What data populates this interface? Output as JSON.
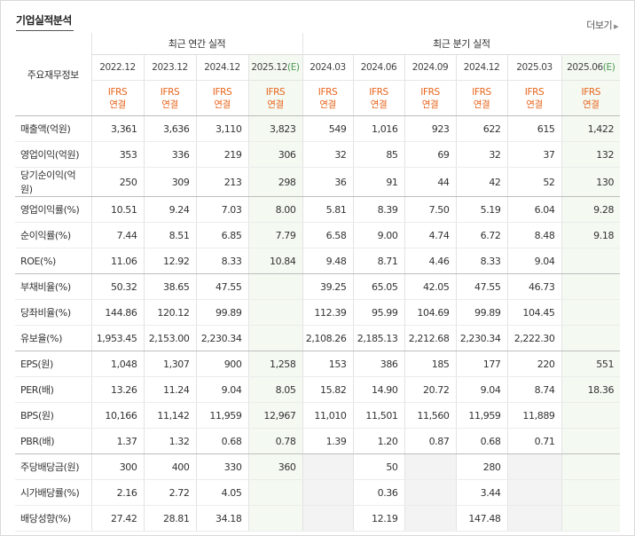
{
  "header": {
    "title": "기업실적분석",
    "more_label": "더보기"
  },
  "table": {
    "corner_label": "주요재무정보",
    "annual_group_label": "최근 연간 실적",
    "quarter_group_label": "최근 분기 실적",
    "periods": [
      "2022.12",
      "2023.12",
      "2024.12",
      "2025.12",
      "2024.03",
      "2024.06",
      "2024.09",
      "2024.12",
      "2025.03",
      "2025.06"
    ],
    "estimate_mark": "(E)",
    "estimate_columns": [
      3,
      9
    ],
    "standard_label": "IFRS",
    "basis_label": "연결",
    "rows": [
      {
        "label": "매출액(억원)",
        "values": [
          "3,361",
          "3,636",
          "3,110",
          "3,823",
          "549",
          "1,016",
          "923",
          "622",
          "615",
          "1,422"
        ]
      },
      {
        "label": "영업이익(억원)",
        "values": [
          "353",
          "336",
          "219",
          "306",
          "32",
          "85",
          "69",
          "32",
          "37",
          "132"
        ]
      },
      {
        "label": "당기순이익(억원)",
        "values": [
          "250",
          "309",
          "213",
          "298",
          "36",
          "91",
          "44",
          "42",
          "52",
          "130"
        ],
        "group_end": true
      },
      {
        "label": "영업이익률(%)",
        "values": [
          "10.51",
          "9.24",
          "7.03",
          "8.00",
          "5.81",
          "8.39",
          "7.50",
          "5.19",
          "6.04",
          "9.28"
        ]
      },
      {
        "label": "순이익률(%)",
        "values": [
          "7.44",
          "8.51",
          "6.85",
          "7.79",
          "6.58",
          "9.00",
          "4.74",
          "6.72",
          "8.48",
          "9.18"
        ]
      },
      {
        "label": "ROE(%)",
        "values": [
          "11.06",
          "12.92",
          "8.33",
          "10.84",
          "9.48",
          "8.71",
          "4.46",
          "8.33",
          "9.04",
          ""
        ],
        "group_end": true
      },
      {
        "label": "부채비율(%)",
        "values": [
          "50.32",
          "38.65",
          "47.55",
          "",
          "39.25",
          "65.05",
          "42.05",
          "47.55",
          "46.73",
          ""
        ]
      },
      {
        "label": "당좌비율(%)",
        "values": [
          "144.86",
          "120.12",
          "99.89",
          "",
          "112.39",
          "95.99",
          "104.69",
          "99.89",
          "104.45",
          ""
        ]
      },
      {
        "label": "유보율(%)",
        "values": [
          "1,953.45",
          "2,153.00",
          "2,230.34",
          "",
          "2,108.26",
          "2,185.13",
          "2,212.68",
          "2,230.34",
          "2,222.30",
          ""
        ],
        "group_end": true
      },
      {
        "label": "EPS(원)",
        "values": [
          "1,048",
          "1,307",
          "900",
          "1,258",
          "153",
          "386",
          "185",
          "177",
          "220",
          "551"
        ]
      },
      {
        "label": "PER(배)",
        "values": [
          "13.26",
          "11.24",
          "9.04",
          "8.05",
          "15.82",
          "14.90",
          "20.72",
          "9.04",
          "8.74",
          "18.36"
        ]
      },
      {
        "label": "BPS(원)",
        "values": [
          "10,166",
          "11,142",
          "11,959",
          "12,967",
          "11,010",
          "11,501",
          "11,560",
          "11,959",
          "11,889",
          ""
        ]
      },
      {
        "label": "PBR(배)",
        "values": [
          "1.37",
          "1.32",
          "0.68",
          "0.78",
          "1.39",
          "1.20",
          "0.87",
          "0.68",
          "0.71",
          ""
        ],
        "group_end": true
      },
      {
        "label": "주당배당금(원)",
        "values": [
          "300",
          "400",
          "330",
          "360",
          "",
          "50",
          "",
          "280",
          "",
          ""
        ],
        "shaded_empty": true
      },
      {
        "label": "시가배당률(%)",
        "values": [
          "2.16",
          "2.72",
          "4.05",
          "",
          "",
          "0.36",
          "",
          "3.44",
          "",
          ""
        ],
        "shaded_empty": true
      },
      {
        "label": "배당성향(%)",
        "values": [
          "27.42",
          "28.81",
          "34.18",
          "",
          "",
          "12.19",
          "",
          "147.48",
          "",
          ""
        ],
        "shaded_empty": true
      }
    ]
  }
}
